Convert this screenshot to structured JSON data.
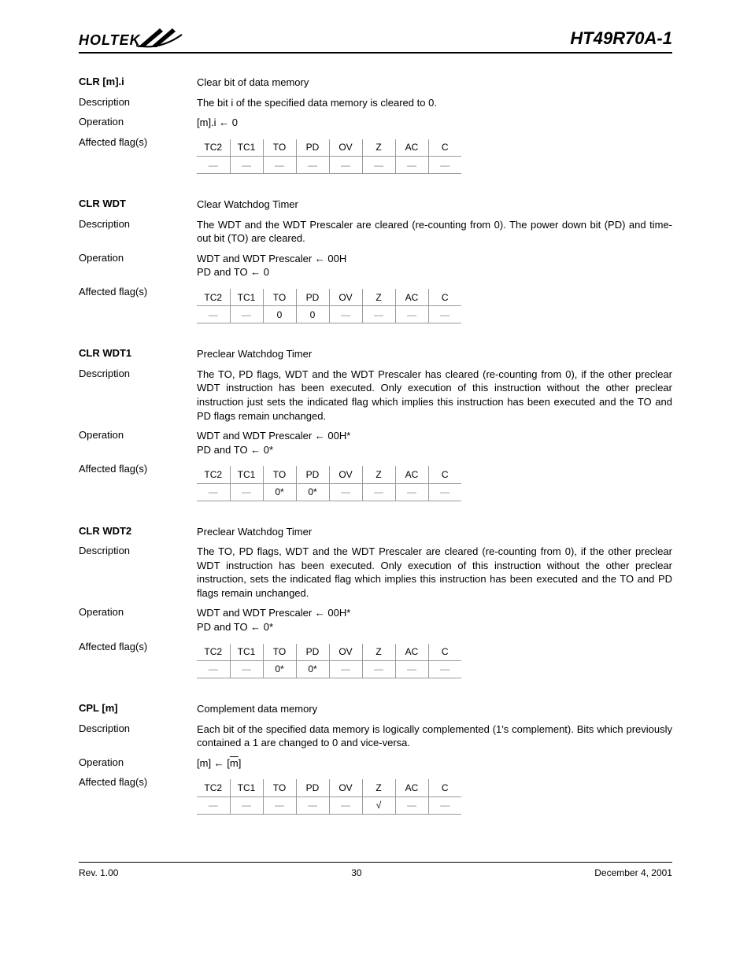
{
  "header": {
    "brand": "HOLTEK",
    "part": "HT49R70A-1"
  },
  "row_labels": {
    "description": "Description",
    "operation": "Operation",
    "affected": "Affected flag(s)"
  },
  "flag_headers": [
    "TC2",
    "TC1",
    "TO",
    "PD",
    "OV",
    "Z",
    "AC",
    "C"
  ],
  "instructions": [
    {
      "mnemonic": "CLR [m].i",
      "title": "Clear bit of data memory",
      "description": "The bit i of the specified data memory is cleared to 0.",
      "operation": "[m].i ← 0",
      "flags": [
        "—",
        "—",
        "—",
        "—",
        "—",
        "—",
        "—",
        "—"
      ]
    },
    {
      "mnemonic": "CLR WDT",
      "title": "Clear Watchdog Timer",
      "description": "The WDT and the WDT Prescaler are cleared (re-counting from 0). The power down bit (PD) and time-out bit (TO) are cleared.",
      "operation": "WDT and WDT Prescaler ← 00H\nPD and TO ← 0",
      "flags": [
        "—",
        "—",
        "0",
        "0",
        "—",
        "—",
        "—",
        "—"
      ]
    },
    {
      "mnemonic": "CLR WDT1",
      "title": "Preclear Watchdog Timer",
      "description": "The TO, PD flags, WDT and the WDT Prescaler has cleared (re-counting from 0), if the other preclear WDT instruction has been executed. Only execution of this instruction without the other preclear instruction just sets the indicated flag which implies this instruction has been executed and the TO and PD flags remain unchanged.",
      "operation": "WDT and WDT Prescaler ← 00H*\nPD and TO ← 0*",
      "flags": [
        "—",
        "—",
        "0*",
        "0*",
        "—",
        "—",
        "—",
        "—"
      ]
    },
    {
      "mnemonic": "CLR WDT2",
      "title": "Preclear Watchdog Timer",
      "description": "The TO, PD flags, WDT and the WDT Prescaler are cleared (re-counting from 0), if the other preclear WDT instruction has been executed. Only execution of this instruction without the other preclear instruction, sets the indicated flag which implies this instruction has been executed and the TO and PD flags remain unchanged.",
      "operation": "WDT and WDT Prescaler ← 00H*\nPD and TO ← 0*",
      "flags": [
        "—",
        "—",
        "0*",
        "0*",
        "—",
        "—",
        "—",
        "—"
      ]
    },
    {
      "mnemonic": "CPL [m]",
      "title": "Complement data memory",
      "description": "Each bit of the specified data memory is logically complemented (1′s complement). Bits which previously contained a 1 are changed to 0 and vice-versa.",
      "operation_html": "[m] ← [<span class=\"overline\">m</span>]",
      "flags": [
        "—",
        "—",
        "—",
        "—",
        "—",
        "√",
        "—",
        "—"
      ]
    }
  ],
  "footer": {
    "rev": "Rev. 1.00",
    "page": "30",
    "date": "December 4, 2001"
  }
}
